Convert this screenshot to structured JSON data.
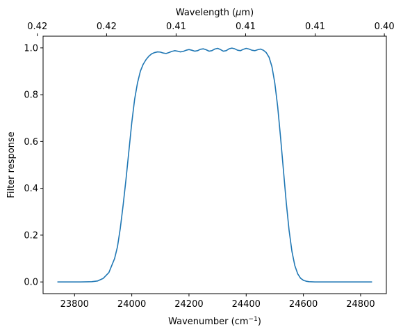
{
  "chart_data": {
    "type": "line",
    "xlabel": "Wavenumber (cm",
    "xlabel_sup": "−1",
    "xlabel_end": ")",
    "ylabel": "Filter response",
    "top_xlabel": "Wavelength (",
    "top_xlabel_mu": "μ",
    "top_xlabel_end": "m)",
    "xlim": [
      23690,
      24890
    ],
    "ylim": [
      -0.05,
      1.05
    ],
    "x_ticks": [
      23800,
      24000,
      24200,
      24400,
      24600,
      24800
    ],
    "x_tick_labels": [
      "23800",
      "24000",
      "24200",
      "24400",
      "24600",
      "24800"
    ],
    "y_ticks": [
      0.0,
      0.2,
      0.4,
      0.6,
      0.8,
      1.0
    ],
    "y_tick_labels": [
      "0.0",
      "0.2",
      "0.4",
      "0.6",
      "0.8",
      "1.0"
    ],
    "top_ticks": [
      23670,
      23912,
      24155,
      24398,
      24641,
      24883
    ],
    "top_tick_labels": [
      "0.42",
      "0.42",
      "0.41",
      "0.41",
      "0.41",
      "0.40"
    ],
    "grid": false,
    "colors": {
      "line": "#1f77b4",
      "axes": "#000000"
    },
    "series": [
      {
        "x": [
          23740,
          23780,
          23820,
          23860,
          23880,
          23900,
          23920,
          23940,
          23950,
          23960,
          23970,
          23980,
          23990,
          24000,
          24010,
          24020,
          24030,
          24040,
          24050,
          24060,
          24070,
          24080,
          24090,
          24100,
          24110,
          24120,
          24130,
          24140,
          24150,
          24160,
          24170,
          24180,
          24190,
          24200,
          24210,
          24220,
          24230,
          24240,
          24250,
          24260,
          24270,
          24280,
          24290,
          24300,
          24310,
          24320,
          24330,
          24340,
          24350,
          24360,
          24370,
          24380,
          24390,
          24400,
          24410,
          24420,
          24430,
          24440,
          24450,
          24460,
          24470,
          24480,
          24490,
          24500,
          24510,
          24520,
          24530,
          24540,
          24550,
          24560,
          24570,
          24580,
          24590,
          24600,
          24610,
          24620,
          24640,
          24660,
          24680,
          24720,
          24780,
          24840
        ],
        "y": [
          0.0,
          0.0,
          0.0,
          0.001,
          0.004,
          0.015,
          0.04,
          0.1,
          0.15,
          0.23,
          0.33,
          0.44,
          0.56,
          0.68,
          0.78,
          0.85,
          0.9,
          0.93,
          0.95,
          0.965,
          0.975,
          0.98,
          0.983,
          0.982,
          0.978,
          0.976,
          0.98,
          0.985,
          0.988,
          0.986,
          0.983,
          0.985,
          0.99,
          0.993,
          0.99,
          0.986,
          0.988,
          0.994,
          0.996,
          0.992,
          0.986,
          0.988,
          0.995,
          0.998,
          0.993,
          0.986,
          0.988,
          0.996,
          0.999,
          0.996,
          0.99,
          0.988,
          0.994,
          0.998,
          0.995,
          0.99,
          0.988,
          0.992,
          0.995,
          0.99,
          0.98,
          0.96,
          0.92,
          0.85,
          0.75,
          0.62,
          0.48,
          0.34,
          0.22,
          0.13,
          0.07,
          0.035,
          0.016,
          0.007,
          0.003,
          0.001,
          0.0,
          0.0,
          0.0,
          0.0,
          0.0,
          0.0
        ]
      }
    ]
  }
}
